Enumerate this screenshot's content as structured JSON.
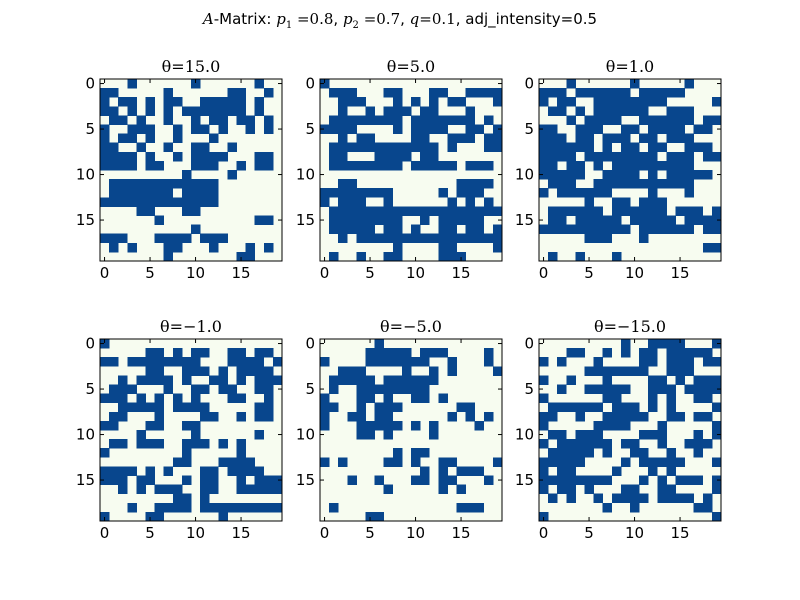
{
  "suptitle": {
    "a_symbol": "A",
    "text1": "-Matrix: ",
    "p1_sym": "p",
    "p1_sub": "1",
    "p1_val": " =0.8",
    "sep1": ", ",
    "p2_sym": "p",
    "p2_sub": "2",
    "p2_val": " =0.7",
    "sep2": ", ",
    "q_sym": "q",
    "q_val": "=0.1",
    "text2": ", adj_intensity=0.5"
  },
  "colors": {
    "on": "#08468d",
    "off": "#f7fcf0",
    "axis": "#000000"
  },
  "chart_data": [
    {
      "type": "heatmap",
      "title": "θ=15.0",
      "x_ticks": [
        "0",
        "5",
        "10",
        "15"
      ],
      "y_ticks": [
        "0",
        "5",
        "10",
        "15"
      ],
      "matrix": [
        "00010000001000000100",
        "11000001000000110010",
        "10110101100111110100",
        "11010101011111110100",
        "01101001001011011010",
        "10011100101101001010",
        "10110100100010000000",
        "11001001001100100000",
        "11110100101111000110",
        "11110110001110010110",
        "00000000010000100000",
        "01111111111110000000",
        "01111111011110000000",
        "11111111111110000000",
        "00001100011000000000",
        "00000010000000000110",
        "00000000001000000000",
        "11100011110111000000",
        "01010001100010001010",
        "00000001000000011000"
      ]
    },
    {
      "type": "heatmap",
      "title": "θ=5.0",
      "x_ticks": [
        "0",
        "5",
        "10",
        "15"
      ],
      "y_ticks": [
        "0",
        "5",
        "10",
        "15"
      ],
      "matrix": [
        "10000000000000000000",
        "01110001100011001111",
        "00111000101010110001",
        "00100101110110001000",
        "01111111101111111010",
        "11110000101111001101",
        "00101100001100111011",
        "01111111111110100011",
        "01100011110110000000",
        "01111111101111101110",
        "00000000000000000000",
        "00110000000000011110",
        "11111111000001011100",
        "10111001000000101010",
        "01111111111111111111",
        "01111111100101111100",
        "01111101101001101101",
        "00101111111111111111",
        "00000000100001100001",
        "01001001100001110000"
      ]
    },
    {
      "type": "heatmap",
      "title": "θ=1.0",
      "x_ticks": [
        "0",
        "5",
        "10",
        "15"
      ],
      "y_ticks": [
        "0",
        "5",
        "10",
        "15"
      ],
      "matrix": [
        "00010000001000001000",
        "11101111110111110000",
        "10110011111111000001",
        "01101011111100111000",
        "00010111100111111011",
        "11001110011011110110",
        "11101101110110111000",
        "11111101011011001110",
        "11110111111110111011",
        "11011010111111111000",
        "11111001111010111110",
        "01110011111111111000",
        "10111111000010001000",
        "00000100110111000000",
        "01111110111111011101",
        "01101111101111101111",
        "11111111110111111011",
        "00000111000100000000",
        "00000000000000000011",
        "01001000100000000000"
      ]
    },
    {
      "type": "heatmap",
      "title": "θ=−1.0",
      "x_ticks": [
        "0",
        "5",
        "10",
        "15"
      ],
      "y_ticks": [
        "0",
        "5",
        "10",
        "15"
      ],
      "matrix": [
        "10000000000000000000",
        "00000110101100110110",
        "11011111111000111101",
        "00000110011101011110",
        "00101111010011010111",
        "01110001001101100110",
        "11101010101000110010",
        "00111110111100000110",
        "01100010000110010110",
        "11000110011000000000",
        "00001000001000000100",
        "01101110011101010000",
        "10000000010000010000",
        "00000000110001111000",
        "11110101000110111100",
        "11101100010110010111",
        "00101011100110011111",
        "00000000110100000000",
        "00010011110111111111",
        "10000110000001000000"
      ]
    },
    {
      "type": "heatmap",
      "title": "θ=−5.0",
      "x_ticks": [
        "0",
        "5",
        "10",
        "15"
      ],
      "y_ticks": [
        "0",
        "5",
        "10",
        "15"
      ],
      "matrix": [
        "00000010000000000000",
        "00000111110111000010",
        "10000111111100100010",
        "00111000010010100001",
        "01111101111110000000",
        "01001111111100000000",
        "10001101001101000000",
        "11001011100000011000",
        "10011011000000101010",
        "10001111101010000100",
        "00001101000010000000",
        "00000000000000000000",
        "00000000101100000000",
        "10100001101001100001",
        "00000000000101011100",
        "00010010001101100010",
        "00000001000001010000",
        "00000000000000000000",
        "01000000000000011100",
        "00000110000000000000"
      ]
    },
    {
      "type": "heatmap",
      "title": "θ=−15.0",
      "x_ticks": [
        "0",
        "5",
        "10",
        "15"
      ],
      "y_ticks": [
        "0",
        "5",
        "10",
        "15"
      ],
      "matrix": [
        "00000000010011110001",
        "00011001010110111110",
        "10100010000110111011",
        "00000111111100111000",
        "10010001000011010111",
        "00100111110011101111",
        "10000001100010100110",
        "01111110111010100001",
        "11001001111100110110",
        "10000011110001000001",
        "01101110000111000101",
        "10111111011001001110",
        "01111101001100100100",
        "11111000010111110001",
        "10110000100010100000",
        "11111111000101011101",
        "10110100011001100001",
        "01010010111101111010",
        "00000001001000000110",
        "10000000000000000001"
      ]
    }
  ]
}
